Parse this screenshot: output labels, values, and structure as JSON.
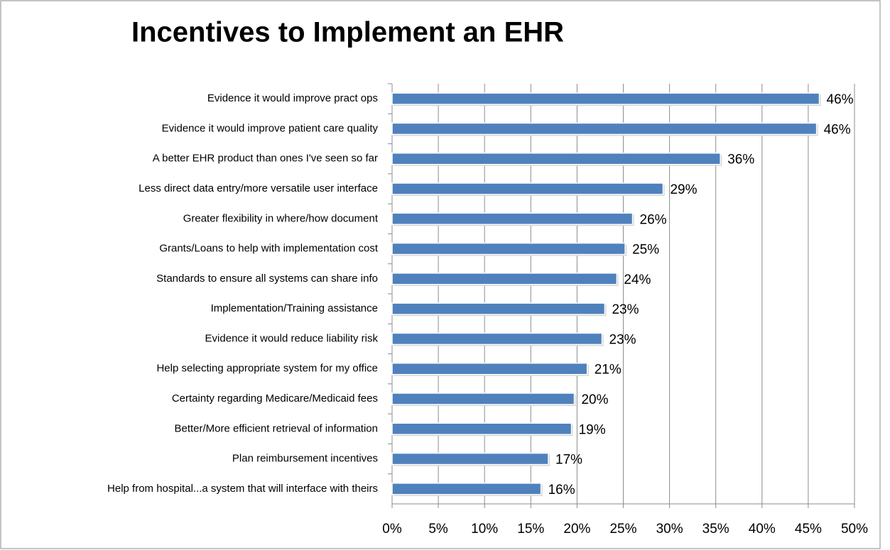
{
  "chart_data": {
    "type": "hbar",
    "title": "Incentives to Implement an EHR",
    "categories": [
      "Evidence it would improve pract ops",
      "Evidence it would improve patient care quality",
      "A better EHR product than ones I've seen so far",
      "Less direct data entry/more versatile user interface",
      "Greater flexibility in where/how  document",
      "Grants/Loans to help with implementation cost",
      "Standards to ensure all systems can share info",
      "Implementation/Training assistance",
      "Evidence it would reduce liability risk",
      "Help selecting appropriate system for my office",
      "Certainty regarding Medicare/Medicaid fees",
      "Better/More efficient retrieval of information",
      "Plan reimbursement incentives",
      "Help from hospital...a system that will interface with theirs"
    ],
    "values": [
      46.2,
      45.9,
      35.5,
      29.3,
      26.0,
      25.2,
      24.3,
      23.0,
      22.7,
      21.1,
      19.7,
      19.4,
      16.9,
      16.1
    ],
    "value_labels": [
      "46%",
      "46%",
      "36%",
      "29%",
      "26%",
      "25%",
      "24%",
      "23%",
      "23%",
      "21%",
      "20%",
      "19%",
      "17%",
      "16%"
    ],
    "color": "#4f81bd",
    "xlim": [
      0,
      50
    ],
    "xticks": [
      {
        "value": 0,
        "label": "0%"
      },
      {
        "value": 5,
        "label": "5%"
      },
      {
        "value": 10,
        "label": "10%"
      },
      {
        "value": 15,
        "label": "15%"
      },
      {
        "value": 20,
        "label": "20%"
      },
      {
        "value": 25,
        "label": "25%"
      },
      {
        "value": 30,
        "label": "30%"
      },
      {
        "value": 35,
        "label": "35%"
      },
      {
        "value": 40,
        "label": "40%"
      },
      {
        "value": 45,
        "label": "45%"
      },
      {
        "value": 50,
        "label": "50%"
      }
    ],
    "grid": true
  }
}
